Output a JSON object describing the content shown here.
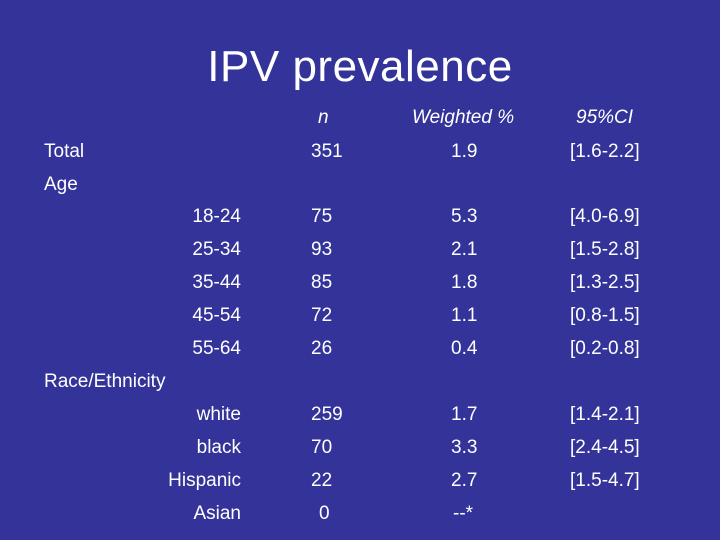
{
  "slide": {
    "title": "IPV prevalence",
    "columns": {
      "n": "n",
      "weighted": "Weighted %",
      "ci": "95%CI"
    },
    "total": {
      "label": "Total",
      "n": "351",
      "weighted": "1.9",
      "ci": "[1.6-2.2]"
    },
    "age": {
      "label": "Age",
      "rows": [
        {
          "label": "18-24",
          "n": "75",
          "weighted": "5.3",
          "ci": "[4.0-6.9]"
        },
        {
          "label": "25-34",
          "n": "93",
          "weighted": "2.1",
          "ci": "[1.5-2.8]"
        },
        {
          "label": "35-44",
          "n": "85",
          "weighted": "1.8",
          "ci": "[1.3-2.5]"
        },
        {
          "label": "45-54",
          "n": "72",
          "weighted": "1.1",
          "ci": "[0.8-1.5]"
        },
        {
          "label": "55-64",
          "n": "26",
          "weighted": "0.4",
          "ci": "[0.2-0.8]"
        }
      ]
    },
    "race": {
      "label": "Race/Ethnicity",
      "rows": [
        {
          "label": "white",
          "n": "259",
          "weighted": "1.7",
          "ci": "[1.4-2.1]"
        },
        {
          "label": "black",
          "n": "70",
          "weighted": "3.3",
          "ci": "[2.4-4.5]"
        },
        {
          "label": "Hispanic",
          "n": "22",
          "weighted": "2.7",
          "ci": "[1.5-4.7]"
        },
        {
          "label": "Asian",
          "n": "0",
          "weighted": "--*",
          "ci": ""
        }
      ]
    },
    "colors": {
      "background": "#333399",
      "text": "#ffffff"
    }
  }
}
